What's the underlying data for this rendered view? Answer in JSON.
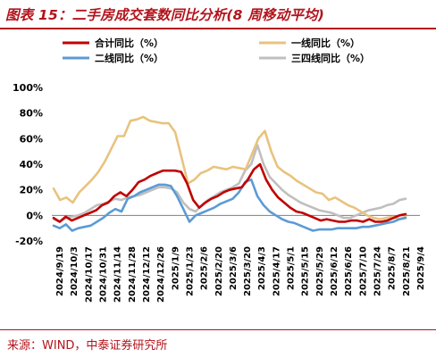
{
  "header": {
    "title": "图表 15：二手房成交套数同比分析(8 周移动平均)"
  },
  "footer": {
    "source": "来源：WIND，中泰证券研究所"
  },
  "chart_data": {
    "type": "line",
    "title": "图表 15：二手房成交套数同比分析(8 周移动平均)",
    "xlabel": "",
    "ylabel": "",
    "ylim": [
      -20,
      100
    ],
    "yticks": [
      -20,
      0,
      20,
      40,
      60,
      80,
      100
    ],
    "ytick_labels": [
      "-20%",
      "0%",
      "20%",
      "40%",
      "60%",
      "80%",
      "100%"
    ],
    "xtick_labels": [
      "2024/9/19",
      "2024/10/3",
      "2024/10/17",
      "2024/10/31",
      "2024/11/14",
      "2024/11/28",
      "2024/12/12",
      "2024/12/26",
      "2025/1/9",
      "2025/1/23",
      "2025/2/6",
      "2025/2/20",
      "2025/3/6",
      "2025/3/20",
      "2025/4/3",
      "2025/4/17",
      "2025/5/1",
      "2025/5/15",
      "2025/5/29",
      "2025/6/12",
      "2025/6/26",
      "2025/7/10",
      "2025/7/24",
      "2025/8/7",
      "2025/8/21",
      "2025/9/4"
    ],
    "grid": false,
    "legend": "top",
    "colors": {
      "合计同比（%）": "#c00000",
      "一线同比（%）": "#e8c37e",
      "二线同比（%）": "#5b9bd5",
      "三四线同比（%）": "#bfbfbf"
    },
    "legend_entries": [
      {
        "key": "合计同比（%）",
        "label": "合计同比（%）"
      },
      {
        "key": "一线同比（%）",
        "label": "一线同比（%）"
      },
      {
        "key": "二线同比（%）",
        "label": "二线同比（%）"
      },
      {
        "key": "三四线同比（%）",
        "label": "三四线同比（%）"
      }
    ],
    "series": [
      {
        "name": "合计同比（%）",
        "values": [
          -2,
          -5,
          -1,
          -4,
          -2,
          0,
          2,
          4,
          8,
          10,
          15,
          18,
          15,
          20,
          26,
          28,
          31,
          33,
          35,
          35,
          35,
          34,
          25,
          12,
          6,
          10,
          13,
          15,
          18,
          20,
          21,
          22,
          28,
          36,
          40,
          28,
          20,
          14,
          10,
          6,
          3,
          2,
          0,
          -2,
          -4,
          -3,
          -4,
          -5,
          -5,
          -4,
          -4,
          -5,
          -3,
          -5,
          -5,
          -4,
          -2,
          0,
          1
        ]
      },
      {
        "name": "一线同比（%）",
        "values": [
          21,
          12,
          14,
          10,
          18,
          23,
          28,
          34,
          42,
          52,
          62,
          62,
          74,
          75,
          77,
          74,
          73,
          72,
          72,
          65,
          45,
          25,
          28,
          33,
          35,
          38,
          37,
          36,
          38,
          37,
          36,
          48,
          60,
          66,
          50,
          38,
          34,
          31,
          27,
          24,
          21,
          18,
          17,
          12,
          14,
          11,
          8,
          6,
          3,
          0,
          -2,
          -3,
          -2,
          -1,
          -3,
          -1
        ]
      },
      {
        "name": "二线同比（%）",
        "values": [
          -8,
          -10,
          -7,
          -12,
          -10,
          -9,
          -8,
          -5,
          -2,
          2,
          5,
          3,
          13,
          15,
          18,
          20,
          22,
          24,
          24,
          23,
          15,
          5,
          -5,
          0,
          2,
          4,
          6,
          9,
          11,
          13,
          18,
          26,
          28,
          15,
          8,
          3,
          0,
          -3,
          -5,
          -6,
          -8,
          -10,
          -12,
          -11,
          -11,
          -11,
          -10,
          -10,
          -10,
          -10,
          -9,
          -9,
          -8,
          -7,
          -6,
          -5,
          -3,
          -2
        ]
      },
      {
        "name": "三四线同比（%）",
        "values": [
          -3,
          -5,
          -2,
          -1,
          0,
          2,
          5,
          8,
          9,
          11,
          13,
          12,
          14,
          15,
          16,
          18,
          20,
          22,
          22,
          21,
          18,
          10,
          5,
          3,
          8,
          12,
          15,
          18,
          20,
          22,
          25,
          35,
          40,
          55,
          40,
          30,
          25,
          20,
          16,
          13,
          10,
          8,
          6,
          4,
          3,
          2,
          0,
          -2,
          -2,
          0,
          2,
          4,
          5,
          6,
          8,
          9,
          12,
          13
        ]
      }
    ]
  }
}
